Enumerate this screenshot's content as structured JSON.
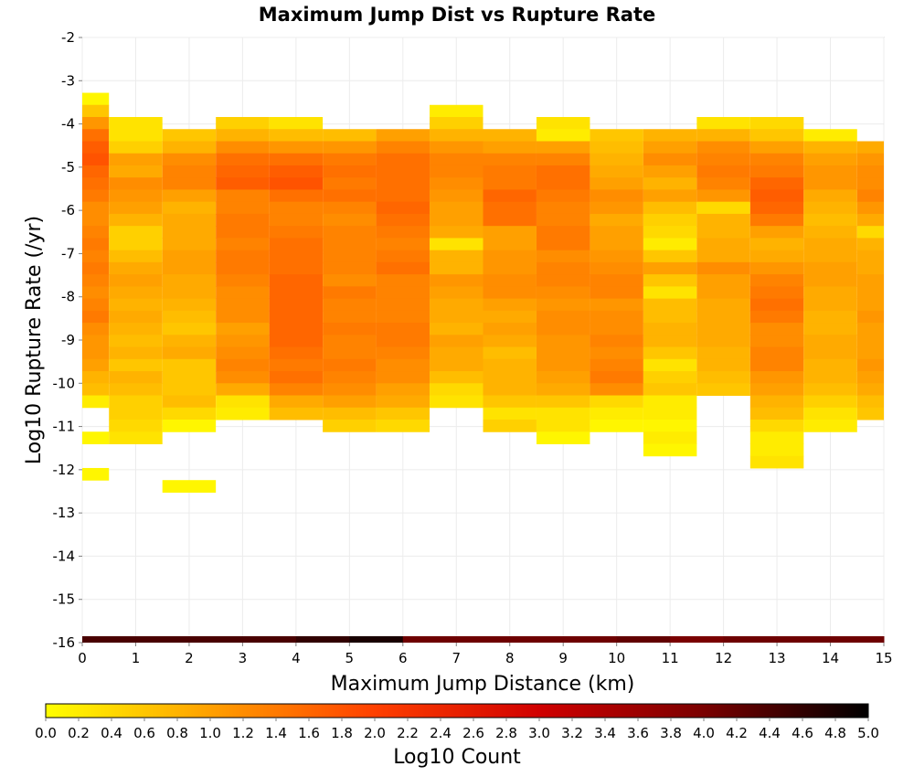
{
  "chart_data": {
    "type": "heatmap",
    "title": "Maximum Jump Dist vs Rupture Rate",
    "xlabel": "Maximum Jump Distance (km)",
    "ylabel": "Log10 Rupture Rate (/yr)",
    "xlim": [
      0,
      15
    ],
    "ylim": [
      -16,
      -2
    ],
    "x_ticks": [
      "0",
      "1",
      "2",
      "3",
      "4",
      "5",
      "6",
      "7",
      "8",
      "9",
      "10",
      "11",
      "12",
      "13",
      "14",
      "15"
    ],
    "y_ticks": [
      "-2",
      "-3",
      "-4",
      "-5",
      "-6",
      "-7",
      "-8",
      "-9",
      "-10",
      "-11",
      "-12",
      "-13",
      "-14",
      "-15",
      "-16"
    ],
    "x_bin_width": 1,
    "y_bin_height": 0.28,
    "colorbar": {
      "label": "Log10 Count",
      "range": [
        0,
        5
      ],
      "ticks": [
        "0.0",
        "0.2",
        "0.4",
        "0.6",
        "0.8",
        "1.0",
        "1.2",
        "1.4",
        "1.6",
        "1.8",
        "2.0",
        "2.2",
        "2.4",
        "2.6",
        "2.8",
        "3.0",
        "3.2",
        "3.4",
        "3.6",
        "3.8",
        "4.0",
        "4.2",
        "4.4",
        "4.6",
        "4.8",
        "5.0"
      ],
      "colors": [
        "#ffff00",
        "#ffa000",
        "#ff4000",
        "#d00000",
        "#7a0000",
        "#000000"
      ]
    },
    "columns": [
      {
        "x": 0,
        "y_start": -3.28,
        "values": [
          0.1,
          0.6,
          1.1,
          1.5,
          1.7,
          1.8,
          1.6,
          1.5,
          1.4,
          1.2,
          1.2,
          1.3,
          1.4,
          1.3,
          1.4,
          1.3,
          1.2,
          1.3,
          1.4,
          1.2,
          1.1,
          1.1,
          1.0,
          0.8,
          0.7,
          0.2,
          0,
          0,
          0.1,
          0,
          0,
          0.1
        ]
      },
      {
        "x": 1,
        "y_start": -3.84,
        "values": [
          0.3,
          0.3,
          0.5,
          1.0,
          0.9,
          1.2,
          1.1,
          1.0,
          0.8,
          0.5,
          0.5,
          0.7,
          0.9,
          1.0,
          0.9,
          0.8,
          0.9,
          0.8,
          0.7,
          0.8,
          0.6,
          0.8,
          0.7,
          0.5,
          0.5,
          0.4,
          0.3
        ]
      },
      {
        "x": 2,
        "y_start": -4.12,
        "values": [
          0.6,
          0.8,
          1.2,
          1.3,
          1.3,
          1.0,
          0.8,
          0.9,
          0.9,
          0.9,
          1.0,
          1.0,
          0.9,
          0.9,
          0.8,
          0.7,
          0.6,
          0.8,
          0.9,
          0.6,
          0.6,
          0.6,
          0.7,
          0.4,
          0.1,
          0,
          0,
          0,
          0,
          0.1
        ]
      },
      {
        "x": 3,
        "y_start": -3.84,
        "values": [
          0.5,
          0.8,
          1.2,
          1.5,
          1.6,
          1.7,
          1.3,
          1.3,
          1.4,
          1.4,
          1.3,
          1.4,
          1.4,
          1.3,
          1.2,
          1.2,
          1.2,
          1.0,
          1.1,
          1.2,
          1.3,
          1.2,
          0.9,
          0.3,
          0.2
        ]
      },
      {
        "x": 4,
        "y_start": -3.84,
        "values": [
          0.3,
          0.7,
          1.1,
          1.5,
          1.7,
          1.8,
          1.5,
          1.3,
          1.3,
          1.4,
          1.5,
          1.5,
          1.5,
          1.6,
          1.6,
          1.6,
          1.6,
          1.6,
          1.6,
          1.5,
          1.4,
          1.5,
          1.3,
          0.9,
          0.7
        ]
      },
      {
        "x": 5,
        "y_start": -4.12,
        "values": [
          0.7,
          1.1,
          1.4,
          1.5,
          1.4,
          1.5,
          1.3,
          1.2,
          1.3,
          1.3,
          1.3,
          1.3,
          1.2,
          1.4,
          1.3,
          1.3,
          1.4,
          1.3,
          1.3,
          1.4,
          1.3,
          1.2,
          1.0,
          0.7,
          0.5
        ]
      },
      {
        "x": 6,
        "y_start": -4.12,
        "values": [
          1.0,
          1.3,
          1.5,
          1.5,
          1.5,
          1.5,
          1.6,
          1.5,
          1.4,
          1.3,
          1.4,
          1.5,
          1.3,
          1.3,
          1.3,
          1.3,
          1.4,
          1.4,
          1.3,
          1.2,
          1.2,
          1.0,
          0.9,
          0.6,
          0.4
        ]
      },
      {
        "x": 7,
        "y_start": -3.56,
        "values": [
          0.2,
          0.5,
          0.8,
          1.1,
          1.3,
          1.3,
          1.2,
          1.1,
          1.0,
          1.0,
          0.9,
          0.3,
          0.8,
          0.8,
          1.1,
          1.0,
          0.9,
          0.9,
          0.8,
          1.0,
          0.9,
          0.9,
          0.7,
          0.4,
          0.3
        ]
      },
      {
        "x": 8,
        "y_start": -4.12,
        "values": [
          0.8,
          1.0,
          1.3,
          1.4,
          1.4,
          1.6,
          1.5,
          1.5,
          1.0,
          1.0,
          1.1,
          1.1,
          1.2,
          1.2,
          1.0,
          0.9,
          1.0,
          0.9,
          0.7,
          0.8,
          0.8,
          0.8,
          0.6,
          0.3,
          0.5
        ]
      },
      {
        "x": 9,
        "y_start": -3.84,
        "values": [
          0.3,
          0.2,
          1.0,
          1.3,
          1.5,
          1.5,
          1.4,
          1.3,
          1.3,
          1.4,
          1.4,
          1.2,
          1.3,
          1.3,
          1.2,
          1.1,
          1.2,
          1.2,
          1.1,
          1.1,
          1.1,
          1.0,
          0.9,
          0.6,
          0.3,
          0.3,
          0.1
        ]
      },
      {
        "x": 10,
        "y_start": -4.12,
        "values": [
          0.6,
          0.7,
          0.8,
          0.9,
          1.0,
          1.2,
          1.1,
          0.9,
          1.0,
          1.0,
          1.1,
          1.2,
          1.3,
          1.3,
          1.1,
          1.2,
          1.2,
          1.3,
          1.2,
          1.3,
          1.4,
          1.2,
          0.4,
          0.2,
          0.1
        ]
      },
      {
        "x": 11,
        "y_start": -4.12,
        "values": [
          0.8,
          1.0,
          1.2,
          1.0,
          0.8,
          1.0,
          0.7,
          0.5,
          0.4,
          0.2,
          0.6,
          1.0,
          0.6,
          0.3,
          0.7,
          0.7,
          0.8,
          0.8,
          0.6,
          0.3,
          0.5,
          0.6,
          0.2,
          0.2,
          0.1,
          0.2,
          0.1
        ]
      },
      {
        "x": 12,
        "y_start": -3.84,
        "values": [
          0.3,
          0.8,
          1.2,
          1.3,
          1.4,
          1.3,
          1.1,
          0.4,
          0.8,
          0.8,
          0.9,
          0.9,
          1.2,
          1.0,
          1.0,
          0.9,
          0.9,
          0.9,
          0.9,
          0.8,
          0.8,
          0.7,
          0.6
        ]
      },
      {
        "x": 13,
        "y_start": -3.84,
        "values": [
          0.4,
          0.6,
          1.0,
          1.3,
          1.4,
          1.6,
          1.7,
          1.6,
          1.4,
          1.0,
          0.8,
          0.9,
          1.1,
          1.3,
          1.4,
          1.5,
          1.4,
          1.2,
          1.2,
          1.3,
          1.3,
          1.1,
          1.0,
          0.8,
          0.7,
          0.4,
          0.2,
          0.2,
          0.3
        ]
      },
      {
        "x": 14,
        "y_start": -4.12,
        "values": [
          0.2,
          0.8,
          1.0,
          1.1,
          1.1,
          0.9,
          0.8,
          0.7,
          0.8,
          0.9,
          0.9,
          1.0,
          1.0,
          0.9,
          0.9,
          0.8,
          0.8,
          0.9,
          0.9,
          0.8,
          0.8,
          0.7,
          0.5,
          0.3,
          0.2
        ]
      },
      {
        "x": 15,
        "y_start": -4.4,
        "values": [
          0.9,
          1.1,
          1.2,
          1.2,
          1.3,
          1.1,
          0.9,
          0.4,
          0.8,
          0.9,
          0.9,
          1.0,
          1.0,
          1.0,
          1.1,
          1.0,
          1.0,
          1.0,
          1.1,
          1.0,
          0.9,
          0.7,
          0.6
        ]
      }
    ],
    "bottom_strip": {
      "y": -16,
      "values": [
        4.4,
        4.4,
        4.4,
        4.4,
        4.6,
        4.8,
        4.1,
        4.1,
        4.1,
        4.1,
        4.2,
        4.0,
        4.1,
        4.1,
        4.1
      ]
    }
  }
}
